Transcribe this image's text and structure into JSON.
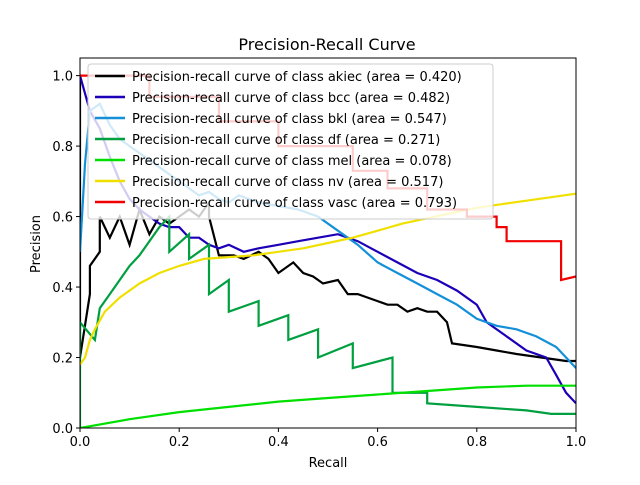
{
  "chart_data": {
    "type": "line",
    "title": "Precision-Recall Curve",
    "xlabel": "Recall",
    "ylabel": "Precision",
    "xlim": [
      0.0,
      1.0
    ],
    "ylim": [
      0.0,
      1.05
    ],
    "grid": false,
    "legend_position": "top-left (overlapping plot)",
    "xticks": [
      0.0,
      0.2,
      0.4,
      0.6,
      0.8,
      1.0
    ],
    "xtick_labels": [
      "0.0",
      "0.2",
      "0.4",
      "0.6",
      "0.8",
      "1.0"
    ],
    "yticks": [
      0.0,
      0.2,
      0.4,
      0.6,
      0.8,
      1.0
    ],
    "ytick_labels": [
      "0.0",
      "0.2",
      "0.4",
      "0.6",
      "0.8",
      "1.0"
    ],
    "series": [
      {
        "name": "Precision-recall curve of class akiec (area = 0.420)",
        "class": "akiec",
        "area": "0.420",
        "color": "#000000",
        "points": [
          [
            0,
            1.0
          ],
          [
            0,
            0.2
          ],
          [
            0.02,
            0.38
          ],
          [
            0.02,
            0.46
          ],
          [
            0.04,
            0.5
          ],
          [
            0.04,
            0.6
          ],
          [
            0.06,
            0.54
          ],
          [
            0.08,
            0.6
          ],
          [
            0.1,
            0.52
          ],
          [
            0.12,
            0.62
          ],
          [
            0.14,
            0.55
          ],
          [
            0.16,
            0.6
          ],
          [
            0.18,
            0.58
          ],
          [
            0.2,
            0.6
          ],
          [
            0.22,
            0.62
          ],
          [
            0.24,
            0.6
          ],
          [
            0.26,
            0.64
          ],
          [
            0.26,
            0.6
          ],
          [
            0.28,
            0.49
          ],
          [
            0.31,
            0.49
          ],
          [
            0.33,
            0.48
          ],
          [
            0.36,
            0.5
          ],
          [
            0.38,
            0.48
          ],
          [
            0.4,
            0.44
          ],
          [
            0.43,
            0.47
          ],
          [
            0.45,
            0.44
          ],
          [
            0.47,
            0.43
          ],
          [
            0.49,
            0.41
          ],
          [
            0.52,
            0.42
          ],
          [
            0.54,
            0.38
          ],
          [
            0.56,
            0.38
          ],
          [
            0.58,
            0.37
          ],
          [
            0.6,
            0.36
          ],
          [
            0.62,
            0.35
          ],
          [
            0.64,
            0.35
          ],
          [
            0.66,
            0.33
          ],
          [
            0.68,
            0.34
          ],
          [
            0.7,
            0.33
          ],
          [
            0.72,
            0.33
          ],
          [
            0.74,
            0.3
          ],
          [
            0.75,
            0.24
          ],
          [
            0.8,
            0.23
          ],
          [
            0.84,
            0.22
          ],
          [
            0.88,
            0.21
          ],
          [
            0.93,
            0.2
          ],
          [
            0.98,
            0.19
          ],
          [
            1.0,
            0.19
          ]
        ]
      },
      {
        "name": "Precision-recall curve of class bcc (area = 0.482)",
        "class": "bcc",
        "area": "0.482",
        "color": "#1c00b8",
        "points": [
          [
            0,
            1.0
          ],
          [
            0.02,
            0.9
          ],
          [
            0.04,
            0.85
          ],
          [
            0.06,
            0.77
          ],
          [
            0.08,
            0.7
          ],
          [
            0.1,
            0.65
          ],
          [
            0.12,
            0.62
          ],
          [
            0.14,
            0.6
          ],
          [
            0.16,
            0.58
          ],
          [
            0.18,
            0.57
          ],
          [
            0.2,
            0.57
          ],
          [
            0.22,
            0.54
          ],
          [
            0.24,
            0.54
          ],
          [
            0.26,
            0.52
          ],
          [
            0.28,
            0.51
          ],
          [
            0.3,
            0.52
          ],
          [
            0.33,
            0.5
          ],
          [
            0.36,
            0.51
          ],
          [
            0.4,
            0.52
          ],
          [
            0.44,
            0.53
          ],
          [
            0.48,
            0.54
          ],
          [
            0.52,
            0.55
          ],
          [
            0.56,
            0.53
          ],
          [
            0.6,
            0.5
          ],
          [
            0.64,
            0.47
          ],
          [
            0.68,
            0.44
          ],
          [
            0.72,
            0.42
          ],
          [
            0.76,
            0.39
          ],
          [
            0.8,
            0.35
          ],
          [
            0.82,
            0.3
          ],
          [
            0.86,
            0.26
          ],
          [
            0.9,
            0.22
          ],
          [
            0.94,
            0.2
          ],
          [
            0.96,
            0.15
          ],
          [
            0.98,
            0.1
          ],
          [
            1.0,
            0.07
          ]
        ]
      },
      {
        "name": "Precision-recall curve of class bkl (area = 0.547)",
        "class": "bkl",
        "area": "0.547",
        "color": "#1490d8",
        "points": [
          [
            0,
            0.5
          ],
          [
            0.01,
            0.75
          ],
          [
            0.02,
            0.9
          ],
          [
            0.04,
            0.92
          ],
          [
            0.06,
            0.86
          ],
          [
            0.08,
            0.82
          ],
          [
            0.1,
            0.8
          ],
          [
            0.12,
            0.78
          ],
          [
            0.14,
            0.76
          ],
          [
            0.16,
            0.74
          ],
          [
            0.18,
            0.72
          ],
          [
            0.2,
            0.7
          ],
          [
            0.22,
            0.68
          ],
          [
            0.24,
            0.66
          ],
          [
            0.26,
            0.67
          ],
          [
            0.28,
            0.65
          ],
          [
            0.3,
            0.64
          ],
          [
            0.32,
            0.66
          ],
          [
            0.36,
            0.64
          ],
          [
            0.4,
            0.63
          ],
          [
            0.44,
            0.62
          ],
          [
            0.48,
            0.6
          ],
          [
            0.52,
            0.56
          ],
          [
            0.56,
            0.52
          ],
          [
            0.6,
            0.47
          ],
          [
            0.64,
            0.44
          ],
          [
            0.68,
            0.41
          ],
          [
            0.72,
            0.38
          ],
          [
            0.76,
            0.35
          ],
          [
            0.8,
            0.31
          ],
          [
            0.84,
            0.29
          ],
          [
            0.88,
            0.28
          ],
          [
            0.92,
            0.26
          ],
          [
            0.96,
            0.23
          ],
          [
            0.98,
            0.2
          ],
          [
            1.0,
            0.17
          ]
        ]
      },
      {
        "name": "Precision-recall curve of class df (area = 0.271)",
        "class": "df",
        "area": "0.271",
        "color": "#00a040",
        "points": [
          [
            0,
            0
          ],
          [
            0,
            0.3
          ],
          [
            0.03,
            0.25
          ],
          [
            0.04,
            0.34
          ],
          [
            0.06,
            0.38
          ],
          [
            0.08,
            0.42
          ],
          [
            0.1,
            0.46
          ],
          [
            0.12,
            0.49
          ],
          [
            0.14,
            0.53
          ],
          [
            0.16,
            0.57
          ],
          [
            0.18,
            0.6
          ],
          [
            0.18,
            0.5
          ],
          [
            0.22,
            0.55
          ],
          [
            0.22,
            0.48
          ],
          [
            0.26,
            0.52
          ],
          [
            0.26,
            0.38
          ],
          [
            0.3,
            0.42
          ],
          [
            0.3,
            0.33
          ],
          [
            0.36,
            0.36
          ],
          [
            0.36,
            0.29
          ],
          [
            0.42,
            0.32
          ],
          [
            0.42,
            0.25
          ],
          [
            0.48,
            0.28
          ],
          [
            0.48,
            0.2
          ],
          [
            0.55,
            0.24
          ],
          [
            0.55,
            0.17
          ],
          [
            0.63,
            0.2
          ],
          [
            0.63,
            0.1
          ],
          [
            0.7,
            0.1
          ],
          [
            0.7,
            0.07
          ],
          [
            0.8,
            0.06
          ],
          [
            0.9,
            0.05
          ],
          [
            0.95,
            0.04
          ],
          [
            1.0,
            0.04
          ]
        ]
      },
      {
        "name": "Precision-recall curve of class mel (area = 0.078)",
        "class": "mel",
        "area": "0.078",
        "color": "#00e000",
        "points": [
          [
            0,
            0
          ],
          [
            0.1,
            0.025
          ],
          [
            0.2,
            0.045
          ],
          [
            0.3,
            0.06
          ],
          [
            0.4,
            0.075
          ],
          [
            0.5,
            0.085
          ],
          [
            0.6,
            0.095
          ],
          [
            0.7,
            0.105
          ],
          [
            0.8,
            0.115
          ],
          [
            0.9,
            0.12
          ],
          [
            1.0,
            0.12
          ]
        ]
      },
      {
        "name": "Precision-recall curve of class nv (area = 0.517)",
        "class": "nv",
        "area": "0.517",
        "color": "#f0e000",
        "points": [
          [
            0,
            0.18
          ],
          [
            0.01,
            0.2
          ],
          [
            0.02,
            0.25
          ],
          [
            0.03,
            0.28
          ],
          [
            0.05,
            0.33
          ],
          [
            0.08,
            0.37
          ],
          [
            0.12,
            0.41
          ],
          [
            0.16,
            0.44
          ],
          [
            0.2,
            0.46
          ],
          [
            0.25,
            0.48
          ],
          [
            0.3,
            0.485
          ],
          [
            0.35,
            0.49
          ],
          [
            0.4,
            0.5
          ],
          [
            0.45,
            0.51
          ],
          [
            0.5,
            0.525
          ],
          [
            0.55,
            0.54
          ],
          [
            0.6,
            0.56
          ],
          [
            0.65,
            0.58
          ],
          [
            0.7,
            0.595
          ],
          [
            0.75,
            0.61
          ],
          [
            0.8,
            0.625
          ],
          [
            0.85,
            0.635
          ],
          [
            0.9,
            0.645
          ],
          [
            0.95,
            0.655
          ],
          [
            1.0,
            0.665
          ]
        ]
      },
      {
        "name": "Precision-recall curve of class vasc (area = 0.793)",
        "class": "vasc",
        "area": "0.793",
        "color": "#f00000",
        "points": [
          [
            0,
            1.0
          ],
          [
            0.14,
            1.0
          ],
          [
            0.14,
            0.94
          ],
          [
            0.28,
            0.94
          ],
          [
            0.28,
            0.87
          ],
          [
            0.4,
            0.87
          ],
          [
            0.4,
            0.8
          ],
          [
            0.55,
            0.8
          ],
          [
            0.55,
            0.73
          ],
          [
            0.62,
            0.73
          ],
          [
            0.62,
            0.68
          ],
          [
            0.7,
            0.68
          ],
          [
            0.7,
            0.62
          ],
          [
            0.78,
            0.62
          ],
          [
            0.78,
            0.6
          ],
          [
            0.84,
            0.6
          ],
          [
            0.84,
            0.57
          ],
          [
            0.86,
            0.57
          ],
          [
            0.86,
            0.53
          ],
          [
            0.97,
            0.53
          ],
          [
            0.97,
            0.42
          ],
          [
            1.0,
            0.43
          ]
        ]
      }
    ]
  }
}
